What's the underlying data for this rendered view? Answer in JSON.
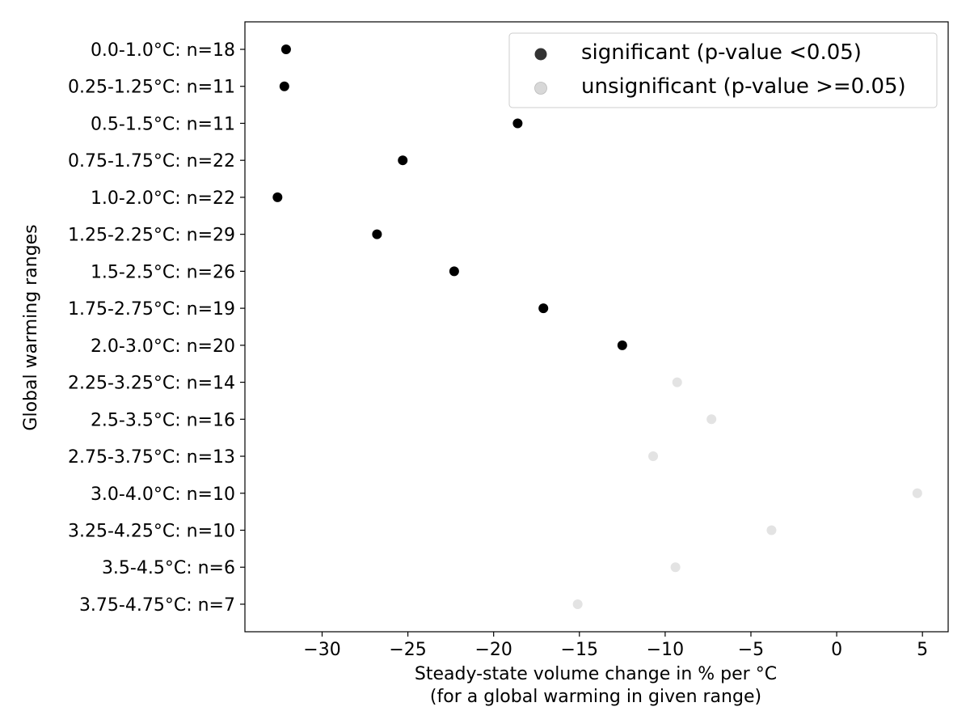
{
  "chart_data": {
    "type": "scatter",
    "title": "",
    "xlabel": [
      "Steady-state volume change in % per °C",
      "(for a global warming in given range)"
    ],
    "ylabel": "Global warming ranges",
    "xlim": [
      -34.5,
      6.5
    ],
    "xticks": [
      -30,
      -25,
      -20,
      -15,
      -10,
      -5,
      0,
      5
    ],
    "xtick_labels": [
      "−30",
      "−25",
      "−20",
      "−15",
      "−10",
      "−5",
      "0",
      "5"
    ],
    "grid": false,
    "legend_position": "top-right",
    "colors": {
      "significant": "#000000",
      "unsignificant": "#e3e3e3",
      "legend_significant": "#333333",
      "legend_unsignificant": "#d8d8d8",
      "legend_edge": "#cccccc",
      "axes": "#000000"
    },
    "series": [
      {
        "key": "significant",
        "name": "significant (p-value <0.05)"
      },
      {
        "key": "unsignificant",
        "name": "unsignificant (p-value >=0.05)"
      }
    ],
    "points": [
      {
        "label": "0.0-1.0°C: n=18",
        "value": -32.1,
        "significant": true
      },
      {
        "label": "0.25-1.25°C: n=11",
        "value": -32.2,
        "significant": true
      },
      {
        "label": "0.5-1.5°C: n=11",
        "value": -18.6,
        "significant": true
      },
      {
        "label": "0.75-1.75°C: n=22",
        "value": -25.3,
        "significant": true
      },
      {
        "label": "1.0-2.0°C: n=22",
        "value": -32.6,
        "significant": true
      },
      {
        "label": "1.25-2.25°C: n=29",
        "value": -26.8,
        "significant": true
      },
      {
        "label": "1.5-2.5°C: n=26",
        "value": -22.3,
        "significant": true
      },
      {
        "label": "1.75-2.75°C: n=19",
        "value": -17.1,
        "significant": true
      },
      {
        "label": "2.0-3.0°C: n=20",
        "value": -12.5,
        "significant": true
      },
      {
        "label": "2.25-3.25°C: n=14",
        "value": -9.3,
        "significant": false
      },
      {
        "label": "2.5-3.5°C: n=16",
        "value": -7.3,
        "significant": false
      },
      {
        "label": "2.75-3.75°C: n=13",
        "value": -10.7,
        "significant": false
      },
      {
        "label": "3.0-4.0°C: n=10",
        "value": 4.7,
        "significant": false
      },
      {
        "label": "3.25-4.25°C: n=10",
        "value": -3.8,
        "significant": false
      },
      {
        "label": "3.5-4.5°C: n=6",
        "value": -9.4,
        "significant": false
      },
      {
        "label": "3.75-4.75°C: n=7",
        "value": -15.1,
        "significant": false
      }
    ]
  }
}
